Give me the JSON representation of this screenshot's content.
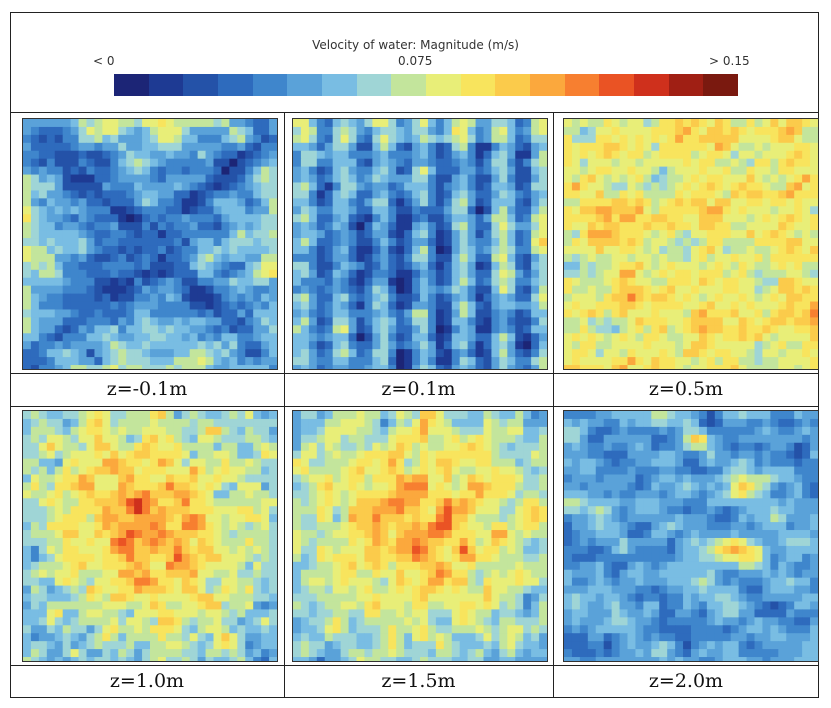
{
  "legend": {
    "title": "Velocity of water: Magnitude (m/s)",
    "min_label": "< 0",
    "mid_label": "0.075",
    "max_label": "> 0.15",
    "colors": [
      "#1c2576",
      "#1e3a93",
      "#2452a8",
      "#2e6bbd",
      "#3f86cc",
      "#5aa2d9",
      "#79bde3",
      "#9fd5d6",
      "#c3e59c",
      "#e8ee78",
      "#f8e45d",
      "#fbcb4b",
      "#fba83d",
      "#f77f30",
      "#ea5324",
      "#cf301c",
      "#a01f14",
      "#7a190f"
    ]
  },
  "panels": [
    {
      "caption": "z=-0.1m",
      "pattern": "x-shape-blue"
    },
    {
      "caption": "z=0.1m",
      "pattern": "vertical-stripes-blue"
    },
    {
      "caption": "z=0.5m",
      "pattern": "mixed-warm"
    },
    {
      "caption": "z=1.0m",
      "pattern": "hot-center"
    },
    {
      "caption": "z=1.5m",
      "pattern": "hot-center"
    },
    {
      "caption": "z=2.0m",
      "pattern": "blue-with-spots"
    }
  ]
}
